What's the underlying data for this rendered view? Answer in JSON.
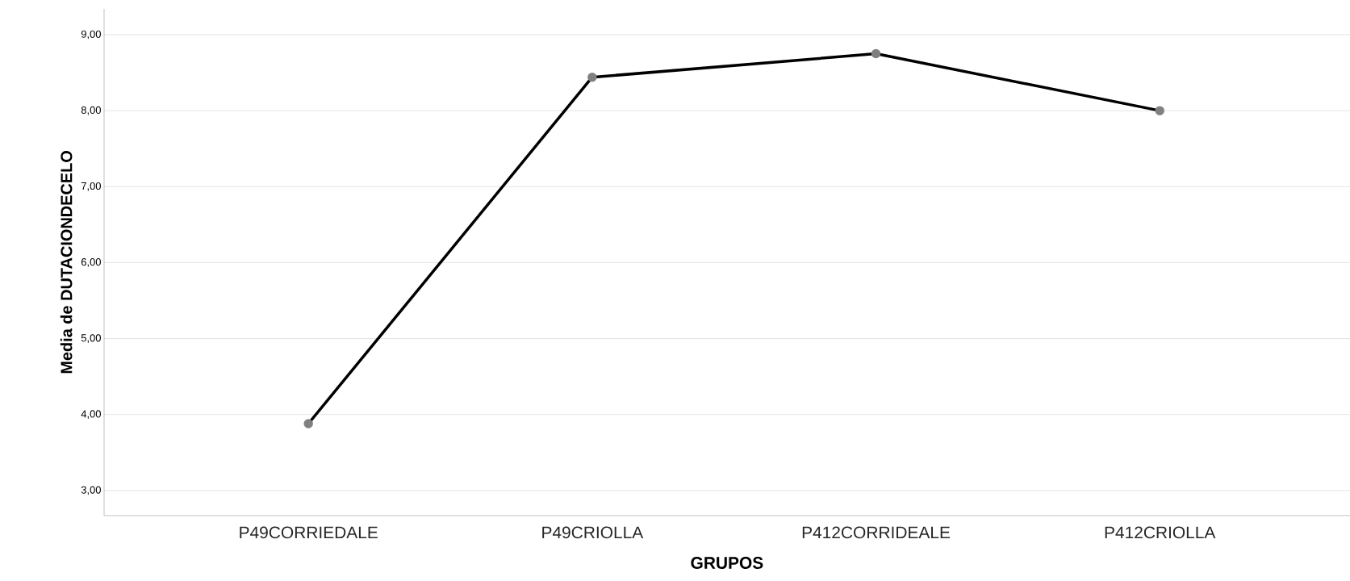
{
  "chart_data": {
    "type": "line",
    "xlabel": "GRUPOS",
    "ylabel": "Media de DUTACIONDECELO",
    "categories": [
      "P49CORRIEDALE",
      "P49CRIOLLA",
      "P412CORRIDEALE",
      "P412CRIOLLA"
    ],
    "series": [
      {
        "color": "#000000",
        "values": [
          3.88,
          8.44,
          8.75,
          8.0
        ]
      }
    ],
    "ylim": [
      2.67,
      9.34
    ],
    "yticks": [
      {
        "value": 3,
        "label": "3,00"
      },
      {
        "value": 4,
        "label": "4,00"
      },
      {
        "value": 5,
        "label": "5,00"
      },
      {
        "value": 6,
        "label": "6,00"
      },
      {
        "value": 7,
        "label": "7,00"
      },
      {
        "value": 8,
        "label": "8,00"
      },
      {
        "value": 9,
        "label": "9,00"
      }
    ],
    "grid": "y",
    "marker": "circle",
    "line_style": "solid"
  }
}
